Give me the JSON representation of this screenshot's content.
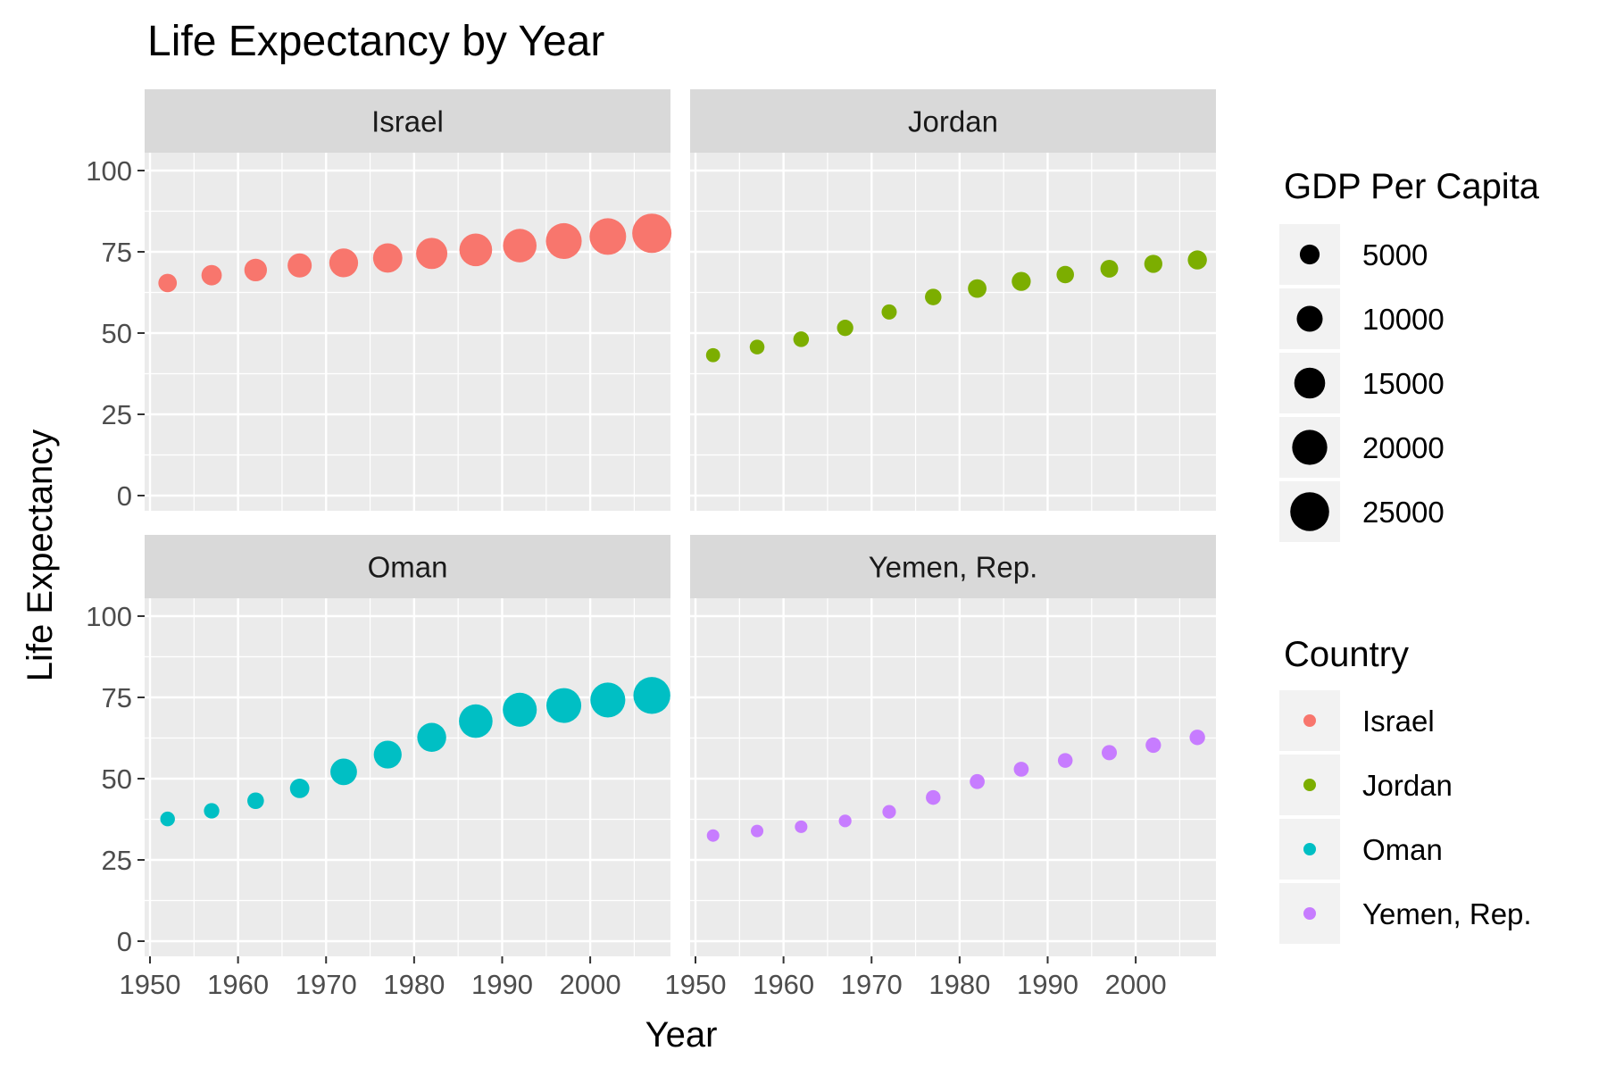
{
  "chart_data": {
    "type": "scatter",
    "title": "Life Expectancy by Year",
    "xlabel": "Year",
    "ylabel": "Life Expectancy",
    "xlim": [
      1950,
      2008
    ],
    "ylim": [
      0,
      100
    ],
    "x_ticks": [
      1950,
      1960,
      1970,
      1980,
      1990,
      2000
    ],
    "y_ticks": [
      0,
      25,
      50,
      75,
      100
    ],
    "grid": true,
    "facet_layout": "2x2",
    "colors": {
      "panel_bg": "#ebebeb",
      "strip_bg": "#d9d9d9",
      "grid": "#ffffff"
    },
    "size_legend": {
      "title": "GDP Per Capita",
      "values": [
        5000,
        10000,
        15000,
        20000,
        25000
      ],
      "labels": [
        "5000",
        "10000",
        "15000",
        "20000",
        "25000"
      ]
    },
    "color_legend": {
      "title": "Country",
      "labels": [
        "Israel",
        "Jordan",
        "Oman",
        "Yemen, Rep."
      ]
    },
    "legend_placement": "right",
    "series": [
      {
        "name": "Israel",
        "color": "#F8766D",
        "x": [
          1952,
          1957,
          1962,
          1967,
          1972,
          1977,
          1982,
          1987,
          1992,
          1997,
          2002,
          2007
        ],
        "y": [
          65.4,
          67.8,
          69.4,
          70.8,
          71.6,
          73.1,
          74.5,
          75.6,
          76.9,
          78.3,
          79.7,
          80.7
        ],
        "size": [
          4087,
          5385,
          7105,
          8394,
          12787,
          13307,
          15367,
          17122,
          18051,
          20897,
          21906,
          25523
        ]
      },
      {
        "name": "Jordan",
        "color": "#7CAE00",
        "x": [
          1952,
          1957,
          1962,
          1967,
          1972,
          1977,
          1982,
          1987,
          1992,
          1997,
          2002,
          2007
        ],
        "y": [
          43.2,
          45.7,
          48.1,
          51.6,
          56.5,
          61.1,
          63.7,
          65.9,
          68.0,
          69.8,
          71.3,
          72.5
        ],
        "size": [
          1547,
          1886,
          2348,
          2742,
          2110,
          2853,
          4161,
          4448,
          3431,
          3645,
          3845,
          4519
        ]
      },
      {
        "name": "Oman",
        "color": "#00BFC4",
        "x": [
          1952,
          1957,
          1962,
          1967,
          1972,
          1977,
          1982,
          1987,
          1992,
          1997,
          2002,
          2007
        ],
        "y": [
          37.6,
          40.1,
          43.2,
          47.0,
          52.1,
          57.4,
          62.7,
          67.7,
          71.2,
          72.5,
          74.2,
          75.6
        ],
        "size": [
          1828,
          2243,
          2924,
          4721,
          10618,
          11848,
          12955,
          18115,
          18617,
          19702,
          19775,
          22316
        ]
      },
      {
        "name": "Yemen, Rep.",
        "color": "#C77CFF",
        "x": [
          1952,
          1957,
          1962,
          1967,
          1972,
          1977,
          1982,
          1987,
          1992,
          1997,
          2002,
          2007
        ],
        "y": [
          32.5,
          33.9,
          35.2,
          37.0,
          39.8,
          44.2,
          49.1,
          52.9,
          55.6,
          58.0,
          60.3,
          62.7
        ],
        "size": [
          781,
          804,
          826,
          862,
          1266,
          1829,
          1978,
          1972,
          1879,
          2117,
          2235,
          2281
        ]
      }
    ]
  }
}
